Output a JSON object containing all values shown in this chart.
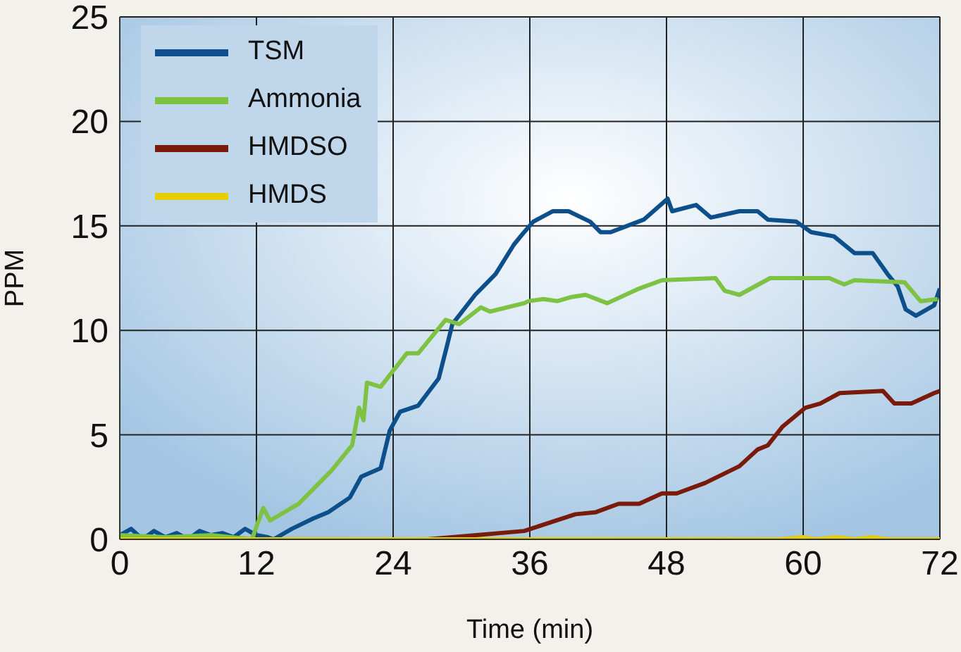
{
  "chart_data": {
    "type": "line",
    "xlabel": "Time (min)",
    "ylabel": "PPM",
    "xlim": [
      0,
      72
    ],
    "xticks": [
      0,
      12,
      24,
      36,
      48,
      60,
      72
    ],
    "ylim": [
      0,
      25
    ],
    "yticks": [
      0,
      5,
      10,
      15,
      20,
      25
    ],
    "grid": true,
    "legend": "top left",
    "marker": "none",
    "line_style": "solid",
    "series": [
      {
        "name": "TSM",
        "color": "#0d4f8b",
        "x": [
          0,
          1,
          2,
          3,
          4,
          5,
          6,
          7,
          8,
          9,
          10,
          11,
          12,
          13,
          13.5,
          15.1,
          17,
          18.3,
          20.2,
          21.2,
          22.9,
          23.7,
          24.6,
          26.2,
          28,
          28.7,
          29.2,
          31.2,
          33,
          34.6,
          35.5,
          36.3,
          38,
          39.4,
          41.3,
          42.2,
          43.1,
          46,
          48.1,
          48.5,
          50.6,
          51.9,
          54.4,
          56,
          56.9,
          59.4,
          60.7,
          62.7,
          64.5,
          66.1,
          67.4,
          68.3,
          69,
          69.9,
          71.5,
          72
        ],
        "values": [
          0.2,
          0.5,
          0,
          0.4,
          0.1,
          0.3,
          0,
          0.4,
          0.2,
          0.3,
          0.1,
          0.5,
          0.2,
          0.1,
          0,
          0.5,
          1,
          1.3,
          2,
          3,
          3.4,
          5.2,
          6.1,
          6.4,
          7.7,
          9.2,
          10.3,
          11.7,
          12.7,
          14.1,
          14.7,
          15.2,
          15.7,
          15.7,
          15.2,
          14.7,
          14.7,
          15.3,
          16.3,
          15.7,
          16,
          15.4,
          15.7,
          15.7,
          15.3,
          15.2,
          14.7,
          14.5,
          13.7,
          13.7,
          12.7,
          12.1,
          11,
          10.7,
          11.2,
          12
        ]
      },
      {
        "name": "Ammonia",
        "color": "#7dc242",
        "x": [
          0,
          4,
          8,
          11.6,
          12.6,
          13.2,
          15.7,
          18.6,
          20.4,
          21,
          21.4,
          21.7,
          22.9,
          25.2,
          26.2,
          28.6,
          29.8,
          31.7,
          32.5,
          35.5,
          35.9,
          37.2,
          38.4,
          39.7,
          40.9,
          42.8,
          45.6,
          47.6,
          52.3,
          53.1,
          54.4,
          57.1,
          62.3,
          63.6,
          64.5,
          68.9,
          70.3,
          71.8
        ],
        "values": [
          0.2,
          0.1,
          0.2,
          0,
          1.5,
          0.9,
          1.7,
          3.3,
          4.5,
          6.3,
          5.7,
          7.5,
          7.3,
          8.9,
          8.9,
          10.5,
          10.3,
          11.1,
          10.9,
          11.3,
          11.4,
          11.5,
          11.4,
          11.6,
          11.7,
          11.3,
          12,
          12.4,
          12.5,
          11.9,
          11.7,
          12.5,
          12.5,
          12.2,
          12.4,
          12.3,
          11.4,
          11.5
        ]
      },
      {
        "name": "HMDSO",
        "color": "#7a1a0a",
        "x": [
          0,
          27,
          35.5,
          37.2,
          40,
          41.8,
          43.8,
          45.6,
          47.6,
          48.9,
          51.4,
          54.4,
          56,
          56.9,
          58.2,
          60.2,
          61.5,
          63.2,
          67,
          68,
          69.5,
          71.5,
          72
        ],
        "values": [
          0,
          0,
          0.4,
          0.7,
          1.2,
          1.3,
          1.7,
          1.7,
          2.2,
          2.2,
          2.7,
          3.5,
          4.3,
          4.5,
          5.4,
          6.3,
          6.5,
          7,
          7.1,
          6.5,
          6.5,
          7,
          7.1
        ]
      },
      {
        "name": "HMDS",
        "color": "#e6cf00",
        "x": [
          0,
          58,
          60,
          61,
          63,
          64.5,
          66,
          67.5,
          72
        ],
        "values": [
          0,
          0,
          0.1,
          0,
          0.1,
          0,
          0.1,
          0,
          0
        ]
      }
    ]
  }
}
